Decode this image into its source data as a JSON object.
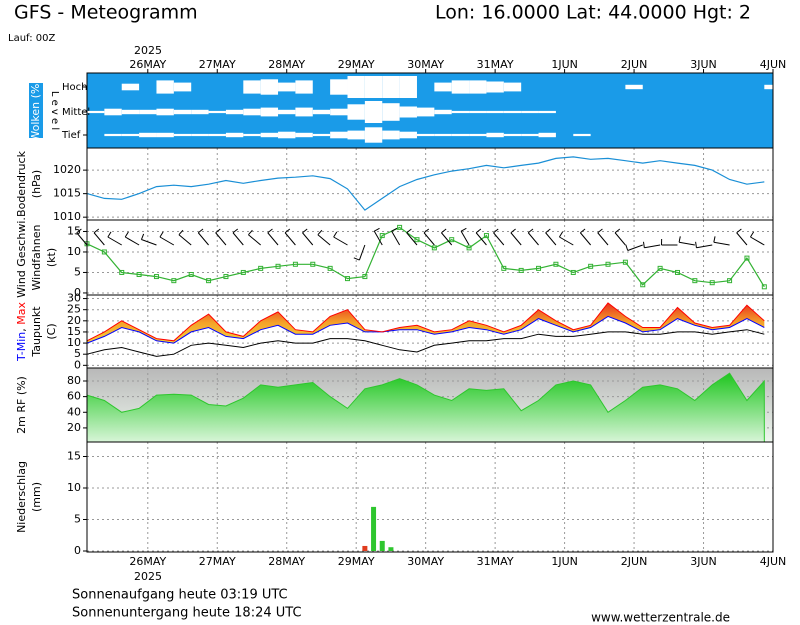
{
  "header": {
    "title": "GFS - Meteogramm",
    "location": "Lon: 16.0000  Lat: 44.0000  Hgt: 2",
    "run": "Lauf: 00Z"
  },
  "footer": {
    "sunrise": "Sonnenaufgang heute 03:19 UTC",
    "sunset": "Sonnenuntergang heute 18:24 UTC",
    "source": "www.wetterzentrale.de"
  },
  "time_axis": {
    "year_label": "2025",
    "xlim": [
      0,
      237
    ],
    "xticks": [
      {
        "value": 21,
        "label": "26MAY"
      },
      {
        "value": 45,
        "label": "27MAY"
      },
      {
        "value": 69,
        "label": "28MAY"
      },
      {
        "value": 93,
        "label": "29MAY"
      },
      {
        "value": 117,
        "label": "30MAY"
      },
      {
        "value": 141,
        "label": "31MAY"
      },
      {
        "value": 165,
        "label": "1JUN"
      },
      {
        "value": 189,
        "label": "2JUN"
      },
      {
        "value": 213,
        "label": "3JUN"
      },
      {
        "value": 237,
        "label": "4JUN"
      }
    ],
    "x": [
      0,
      6,
      12,
      18,
      24,
      30,
      36,
      42,
      48,
      54,
      60,
      66,
      72,
      78,
      84,
      90,
      96,
      102,
      108,
      114,
      120,
      126,
      132,
      138,
      144,
      150,
      156,
      162,
      168,
      174,
      180,
      186,
      192,
      198,
      204,
      210,
      216,
      222,
      228,
      234
    ]
  },
  "chart_data": [
    {
      "type": "cloud",
      "y_label": [
        "Wolken (%)"
      ],
      "level_label": "L e v e l",
      "color": "#1a9be8",
      "series": [
        {
          "name": "Hoch",
          "values": [
            100,
            100,
            70,
            100,
            40,
            60,
            100,
            100,
            100,
            40,
            30,
            60,
            40,
            100,
            30,
            0,
            0,
            0,
            0,
            100,
            60,
            40,
            40,
            50,
            60,
            100,
            100,
            100,
            100,
            100,
            100,
            80,
            100,
            100,
            100,
            100,
            100,
            100,
            100,
            80
          ]
        },
        {
          "name": "Mittel",
          "values": [
            90,
            70,
            80,
            80,
            70,
            80,
            80,
            90,
            80,
            70,
            60,
            80,
            60,
            80,
            70,
            30,
            0,
            20,
            50,
            60,
            80,
            90,
            90,
            90,
            90,
            90,
            90,
            100,
            100,
            100,
            100,
            100,
            100,
            100,
            100,
            100,
            100,
            100,
            100,
            100
          ]
        },
        {
          "name": "Tief",
          "values": [
            100,
            90,
            90,
            80,
            80,
            90,
            90,
            90,
            80,
            90,
            80,
            70,
            80,
            90,
            70,
            60,
            30,
            60,
            70,
            90,
            90,
            90,
            90,
            80,
            90,
            90,
            80,
            100,
            90,
            100,
            100,
            100,
            100,
            100,
            100,
            100,
            100,
            100,
            100,
            100
          ]
        }
      ]
    },
    {
      "type": "line",
      "y_label": [
        "Bodendruck",
        "(hPa)"
      ],
      "ylim": [
        1009.4,
        1024.7
      ],
      "yticks": [
        1010,
        1015,
        1020
      ],
      "grid": true,
      "series": [
        {
          "name": "Bodendruck",
          "color": "#1a8fd6",
          "values": [
            1015,
            1014,
            1013.8,
            1015,
            1016.5,
            1016.8,
            1016.5,
            1017,
            1017.8,
            1017.2,
            1017.8,
            1018.3,
            1018.5,
            1018.8,
            1018.2,
            1016,
            1011.5,
            1014,
            1016.5,
            1018,
            1019,
            1019.8,
            1020.3,
            1021,
            1020.5,
            1021,
            1021.5,
            1022.5,
            1022.8,
            1022.3,
            1022.5,
            1022,
            1021.5,
            1022,
            1021.5,
            1021,
            1020,
            1018,
            1017,
            1017.5
          ]
        }
      ]
    },
    {
      "type": "wind",
      "y_label": [
        "Wind Geschwi.",
        "Windfahnen",
        "(kt)"
      ],
      "y_label_colors": [
        "#00a000",
        "#000000",
        "#000000"
      ],
      "ylim": [
        -0.5,
        17.8
      ],
      "yticks": [
        0,
        5,
        10,
        15
      ],
      "grid": true,
      "series": [
        {
          "name": "Wind Geschwi.",
          "color": "#33b233",
          "values": [
            12,
            10,
            5,
            4.5,
            4,
            3,
            4.5,
            3,
            4,
            5,
            6,
            6.5,
            7,
            7,
            6,
            3.5,
            4,
            14,
            16,
            13,
            11,
            13,
            11,
            14,
            6,
            5.5,
            6,
            7,
            5,
            6.5,
            7,
            7.5,
            2,
            6,
            5,
            3,
            2.5,
            3,
            8.5,
            1.5
          ]
        }
      ],
      "direction": [
        320,
        320,
        300,
        300,
        290,
        300,
        310,
        320,
        320,
        320,
        310,
        320,
        320,
        320,
        310,
        300,
        200,
        330,
        330,
        320,
        320,
        320,
        330,
        320,
        320,
        320,
        320,
        320,
        300,
        320,
        320,
        320,
        250,
        260,
        270,
        280,
        260,
        280,
        320,
        300
      ]
    },
    {
      "type": "band",
      "y_label": [
        [
          "T-Min",
          ", ",
          "Max"
        ],
        "Taupunkt",
        "(C)"
      ],
      "y_label_colors": [
        [
          "#0000ff",
          "#000000",
          "#ff0000"
        ],
        "#000000",
        "#000000"
      ],
      "ylim": [
        -1.2,
        31.6
      ],
      "yticks": [
        0,
        5,
        10,
        15,
        20,
        25,
        30
      ],
      "grid": true,
      "fill": "#f4a42a",
      "series": [
        {
          "name": "T-Min",
          "color": "#0000ff",
          "values": [
            10,
            13,
            17,
            15,
            11,
            10,
            15,
            17,
            13,
            12,
            16,
            18,
            14,
            14,
            18,
            19,
            15,
            15,
            16,
            16,
            14,
            15,
            17,
            16,
            14,
            16,
            21,
            18,
            15,
            17,
            22,
            19,
            15,
            16,
            21,
            18,
            16,
            17,
            21,
            17
          ]
        },
        {
          "name": "Max",
          "color": "#ff0000",
          "values": [
            11,
            15,
            20,
            16,
            12,
            11,
            18,
            23,
            15,
            13,
            20,
            24,
            16,
            15,
            22,
            25,
            16,
            15,
            17,
            18,
            15,
            16,
            20,
            18,
            15,
            18,
            25,
            20,
            16,
            18,
            28,
            22,
            17,
            17,
            26,
            19,
            17,
            18,
            27,
            20
          ]
        },
        {
          "name": "Taupunkt",
          "color": "#000000",
          "values": [
            5,
            7,
            8,
            6,
            4,
            5,
            9,
            10,
            9,
            8,
            10,
            11,
            10,
            10,
            12,
            12,
            11,
            9,
            7,
            6,
            9,
            10,
            11,
            11,
            12,
            12,
            14,
            13,
            13,
            14,
            15,
            15,
            14,
            14,
            15,
            15,
            14,
            15,
            16,
            14
          ]
        }
      ]
    },
    {
      "type": "area",
      "y_label": [
        "2m RF (%)"
      ],
      "y_label_colors": [
        "#00a000"
      ],
      "ylim": [
        2,
        96.6
      ],
      "yticks": [
        20,
        40,
        60,
        80
      ],
      "grid": true,
      "series": [
        {
          "name": "2m RF (%)",
          "color": "#2ec62e",
          "values": [
            62,
            55,
            40,
            45,
            62,
            63,
            62,
            50,
            48,
            58,
            75,
            72,
            75,
            78,
            60,
            45,
            70,
            75,
            83,
            75,
            62,
            55,
            70,
            68,
            70,
            42,
            55,
            75,
            80,
            75,
            40,
            55,
            72,
            75,
            70,
            55,
            75,
            90,
            55,
            80
          ]
        }
      ]
    },
    {
      "type": "bar",
      "y_label": [
        "Niederschlag",
        "(mm)"
      ],
      "ylim": [
        -0.16,
        17.3
      ],
      "yticks": [
        0,
        5,
        10,
        15
      ],
      "grid": true,
      "x": [
        96,
        99,
        102,
        105
      ],
      "values": [
        0.8,
        7,
        1.6,
        0.6
      ],
      "colors": [
        "#e03c1e",
        "#2ec62e",
        "#2ec62e",
        "#2ec62e"
      ]
    }
  ]
}
